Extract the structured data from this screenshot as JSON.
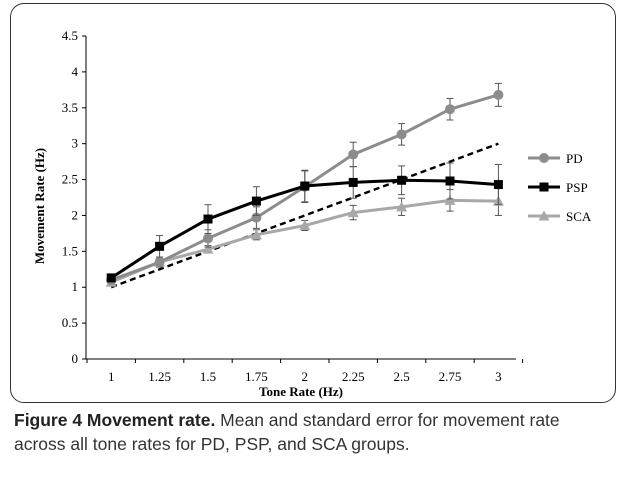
{
  "chart_data": {
    "type": "line",
    "title": "",
    "xlabel": "Tone Rate (Hz)",
    "ylabel": "Movement Rate (Hz)",
    "x": [
      1,
      1.25,
      1.5,
      1.75,
      2,
      2.25,
      2.5,
      2.75,
      3
    ],
    "x_tick_labels": [
      "1",
      "1.25",
      "1.5",
      "1.75",
      "2",
      "2.25",
      "2.5",
      "2.75",
      "3"
    ],
    "ylim": [
      0,
      4.5
    ],
    "y_ticks": [
      0,
      0.5,
      1,
      1.5,
      2,
      2.5,
      3,
      3.5,
      4,
      4.5
    ],
    "y_tick_labels": [
      "0",
      "0.5",
      "1",
      "1.5",
      "2",
      "2.5",
      "3",
      "3.5",
      "4",
      "4.5"
    ],
    "grid": false,
    "legend_position": "right",
    "series": [
      {
        "name": "PD",
        "marker": "circle",
        "color": "#8c8c8c",
        "values": [
          1.1,
          1.35,
          1.68,
          1.97,
          2.4,
          2.85,
          3.13,
          3.48,
          3.68
        ],
        "errors": [
          0.05,
          0.07,
          0.12,
          0.15,
          0.22,
          0.17,
          0.15,
          0.15,
          0.16
        ]
      },
      {
        "name": "PSP",
        "marker": "square",
        "color": "#000000",
        "values": [
          1.13,
          1.57,
          1.95,
          2.2,
          2.41,
          2.46,
          2.49,
          2.48,
          2.43
        ],
        "errors": [
          0.05,
          0.15,
          0.2,
          0.2,
          0.22,
          0.22,
          0.2,
          0.25,
          0.28
        ]
      },
      {
        "name": "SCA",
        "marker": "triangle",
        "color": "#a8a8a8",
        "values": [
          1.07,
          1.35,
          1.53,
          1.73,
          1.86,
          2.04,
          2.12,
          2.21,
          2.2
        ],
        "errors": [
          0.03,
          0.05,
          0.05,
          0.07,
          0.07,
          0.1,
          0.12,
          0.15,
          0.2
        ]
      }
    ],
    "reference_line": {
      "style": "dashed",
      "color": "#000000",
      "x": [
        1,
        3
      ],
      "y": [
        1,
        3
      ]
    }
  },
  "caption": {
    "label": "Figure 4 Movement rate.",
    "text": " Mean and standard error for movement rate across all tone rates for PD, PSP, and SCA groups."
  }
}
